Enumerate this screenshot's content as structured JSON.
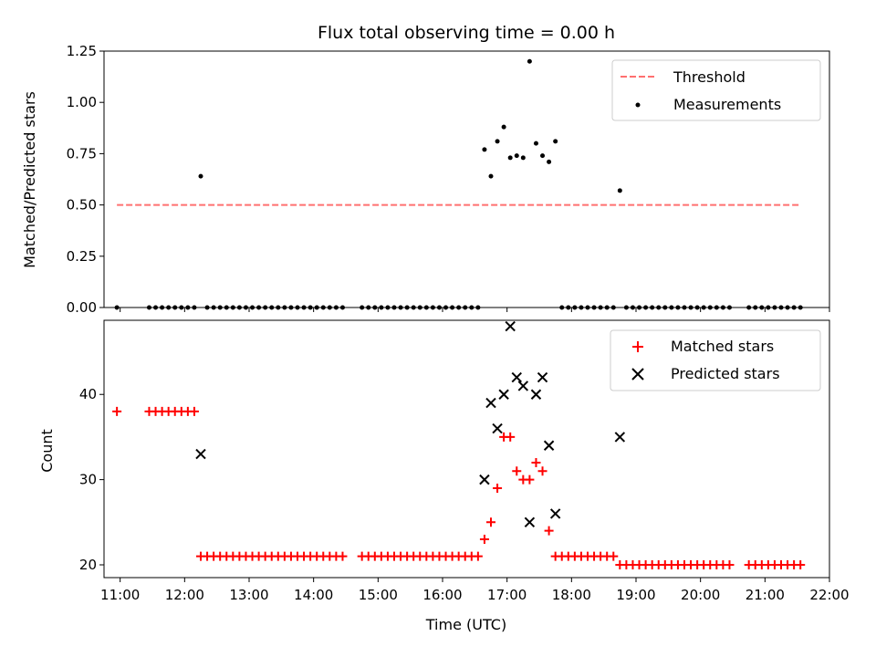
{
  "title": "Flux total observing time = 0.00 h",
  "chart_data": [
    {
      "type": "scatter",
      "ylabel": "Matched/Predicted stars",
      "ylim": [
        0,
        1.25
      ],
      "yticks": [
        0,
        0.25,
        0.5,
        0.75,
        1.0,
        1.25
      ],
      "ytick_labels": [
        "0.00",
        "0.25",
        "0.50",
        "0.75",
        "1.00",
        "1.25"
      ],
      "xlim": [
        "10:45",
        "22:00"
      ],
      "x_ticks_drawn": [
        "11:00",
        "12:00",
        "13:00",
        "14:00",
        "15:00",
        "16:00",
        "17:00",
        "18:00",
        "19:00",
        "20:00",
        "21:00",
        "22:00"
      ],
      "legend": {
        "placement": "top-right",
        "entries": [
          "Threshold",
          "Measurements"
        ]
      },
      "threshold": {
        "name": "Threshold",
        "y": 0.5,
        "x_range": [
          "10:57",
          "21:33"
        ],
        "color": "#ff7070",
        "style": "dashed"
      },
      "series": [
        {
          "name": "Measurements",
          "marker": "dot",
          "color": "#000000",
          "points": [
            [
              "10:57",
              0
            ],
            [
              "11:27",
              0
            ],
            [
              "11:33",
              0
            ],
            [
              "11:39",
              0
            ],
            [
              "11:45",
              0
            ],
            [
              "11:51",
              0
            ],
            [
              "11:57",
              0
            ],
            [
              "12:03",
              0
            ],
            [
              "12:09",
              0
            ],
            [
              "12:15",
              0.64
            ],
            [
              "12:21",
              0
            ],
            [
              "12:27",
              0
            ],
            [
              "12:33",
              0
            ],
            [
              "12:39",
              0
            ],
            [
              "12:45",
              0
            ],
            [
              "12:51",
              0
            ],
            [
              "12:57",
              0
            ],
            [
              "13:03",
              0
            ],
            [
              "13:09",
              0
            ],
            [
              "13:15",
              0
            ],
            [
              "13:21",
              0
            ],
            [
              "13:27",
              0
            ],
            [
              "13:33",
              0
            ],
            [
              "13:39",
              0
            ],
            [
              "13:45",
              0
            ],
            [
              "13:51",
              0
            ],
            [
              "13:57",
              0
            ],
            [
              "14:03",
              0
            ],
            [
              "14:09",
              0
            ],
            [
              "14:15",
              0
            ],
            [
              "14:21",
              0
            ],
            [
              "14:27",
              0
            ],
            [
              "14:45",
              0
            ],
            [
              "14:51",
              0
            ],
            [
              "14:57",
              0
            ],
            [
              "15:03",
              0
            ],
            [
              "15:09",
              0
            ],
            [
              "15:15",
              0
            ],
            [
              "15:21",
              0
            ],
            [
              "15:27",
              0
            ],
            [
              "15:33",
              0
            ],
            [
              "15:39",
              0
            ],
            [
              "15:45",
              0
            ],
            [
              "15:51",
              0
            ],
            [
              "15:57",
              0
            ],
            [
              "16:03",
              0
            ],
            [
              "16:09",
              0
            ],
            [
              "16:15",
              0
            ],
            [
              "16:21",
              0
            ],
            [
              "16:27",
              0
            ],
            [
              "16:33",
              0
            ],
            [
              "16:39",
              0.77
            ],
            [
              "16:45",
              0.64
            ],
            [
              "16:51",
              0.81
            ],
            [
              "16:57",
              0.88
            ],
            [
              "17:03",
              0.73
            ],
            [
              "17:09",
              0.74
            ],
            [
              "17:15",
              0.73
            ],
            [
              "17:21",
              1.2
            ],
            [
              "17:27",
              0.8
            ],
            [
              "17:33",
              0.74
            ],
            [
              "17:39",
              0.71
            ],
            [
              "17:45",
              0.81
            ],
            [
              "17:51",
              0
            ],
            [
              "17:57",
              0
            ],
            [
              "18:03",
              0
            ],
            [
              "18:09",
              0
            ],
            [
              "18:15",
              0
            ],
            [
              "18:21",
              0
            ],
            [
              "18:27",
              0
            ],
            [
              "18:33",
              0
            ],
            [
              "18:39",
              0
            ],
            [
              "18:45",
              0.57
            ],
            [
              "18:51",
              0
            ],
            [
              "18:57",
              0
            ],
            [
              "19:03",
              0
            ],
            [
              "19:09",
              0
            ],
            [
              "19:15",
              0
            ],
            [
              "19:21",
              0
            ],
            [
              "19:27",
              0
            ],
            [
              "19:33",
              0
            ],
            [
              "19:39",
              0
            ],
            [
              "19:45",
              0
            ],
            [
              "19:51",
              0
            ],
            [
              "19:57",
              0
            ],
            [
              "20:03",
              0
            ],
            [
              "20:09",
              0
            ],
            [
              "20:15",
              0
            ],
            [
              "20:21",
              0
            ],
            [
              "20:27",
              0
            ],
            [
              "20:45",
              0
            ],
            [
              "20:51",
              0
            ],
            [
              "20:57",
              0
            ],
            [
              "21:03",
              0
            ],
            [
              "21:09",
              0
            ],
            [
              "21:15",
              0
            ],
            [
              "21:21",
              0
            ],
            [
              "21:27",
              0
            ],
            [
              "21:33",
              0
            ]
          ]
        }
      ]
    },
    {
      "type": "scatter",
      "xlabel": "Time (UTC)",
      "ylabel": "Count",
      "ylim": [
        18.5,
        48.7
      ],
      "yticks": [
        20,
        30,
        40
      ],
      "ytick_labels": [
        "20",
        "30",
        "40"
      ],
      "xlim": [
        "10:45",
        "22:00"
      ],
      "xticks": [
        "11:00",
        "12:00",
        "13:00",
        "14:00",
        "15:00",
        "16:00",
        "17:00",
        "18:00",
        "19:00",
        "20:00",
        "21:00",
        "22:00"
      ],
      "legend": {
        "placement": "top-right",
        "entries": [
          "Matched stars",
          "Predicted stars"
        ]
      },
      "series": [
        {
          "name": "Matched stars",
          "marker": "plus",
          "color": "#ff0000",
          "points": [
            [
              "10:57",
              38
            ],
            [
              "11:27",
              38
            ],
            [
              "11:33",
              38
            ],
            [
              "11:39",
              38
            ],
            [
              "11:45",
              38
            ],
            [
              "11:51",
              38
            ],
            [
              "11:57",
              38
            ],
            [
              "12:03",
              38
            ],
            [
              "12:09",
              38
            ],
            [
              "12:15",
              21
            ],
            [
              "12:21",
              21
            ],
            [
              "12:27",
              21
            ],
            [
              "12:33",
              21
            ],
            [
              "12:39",
              21
            ],
            [
              "12:45",
              21
            ],
            [
              "12:51",
              21
            ],
            [
              "12:57",
              21
            ],
            [
              "13:03",
              21
            ],
            [
              "13:09",
              21
            ],
            [
              "13:15",
              21
            ],
            [
              "13:21",
              21
            ],
            [
              "13:27",
              21
            ],
            [
              "13:33",
              21
            ],
            [
              "13:39",
              21
            ],
            [
              "13:45",
              21
            ],
            [
              "13:51",
              21
            ],
            [
              "13:57",
              21
            ],
            [
              "14:03",
              21
            ],
            [
              "14:09",
              21
            ],
            [
              "14:15",
              21
            ],
            [
              "14:21",
              21
            ],
            [
              "14:27",
              21
            ],
            [
              "14:45",
              21
            ],
            [
              "14:51",
              21
            ],
            [
              "14:57",
              21
            ],
            [
              "15:03",
              21
            ],
            [
              "15:09",
              21
            ],
            [
              "15:15",
              21
            ],
            [
              "15:21",
              21
            ],
            [
              "15:27",
              21
            ],
            [
              "15:33",
              21
            ],
            [
              "15:39",
              21
            ],
            [
              "15:45",
              21
            ],
            [
              "15:51",
              21
            ],
            [
              "15:57",
              21
            ],
            [
              "16:03",
              21
            ],
            [
              "16:09",
              21
            ],
            [
              "16:15",
              21
            ],
            [
              "16:21",
              21
            ],
            [
              "16:27",
              21
            ],
            [
              "16:33",
              21
            ],
            [
              "16:39",
              23
            ],
            [
              "16:45",
              25
            ],
            [
              "16:51",
              29
            ],
            [
              "16:57",
              35
            ],
            [
              "17:03",
              35
            ],
            [
              "17:09",
              31
            ],
            [
              "17:15",
              30
            ],
            [
              "17:21",
              30
            ],
            [
              "17:27",
              32
            ],
            [
              "17:33",
              31
            ],
            [
              "17:39",
              24
            ],
            [
              "17:45",
              21
            ],
            [
              "17:51",
              21
            ],
            [
              "17:57",
              21
            ],
            [
              "18:03",
              21
            ],
            [
              "18:09",
              21
            ],
            [
              "18:15",
              21
            ],
            [
              "18:21",
              21
            ],
            [
              "18:27",
              21
            ],
            [
              "18:33",
              21
            ],
            [
              "18:39",
              21
            ],
            [
              "18:45",
              20
            ],
            [
              "18:51",
              20
            ],
            [
              "18:57",
              20
            ],
            [
              "19:03",
              20
            ],
            [
              "19:09",
              20
            ],
            [
              "19:15",
              20
            ],
            [
              "19:21",
              20
            ],
            [
              "19:27",
              20
            ],
            [
              "19:33",
              20
            ],
            [
              "19:39",
              20
            ],
            [
              "19:45",
              20
            ],
            [
              "19:51",
              20
            ],
            [
              "19:57",
              20
            ],
            [
              "20:03",
              20
            ],
            [
              "20:09",
              20
            ],
            [
              "20:15",
              20
            ],
            [
              "20:21",
              20
            ],
            [
              "20:27",
              20
            ],
            [
              "20:45",
              20
            ],
            [
              "20:51",
              20
            ],
            [
              "20:57",
              20
            ],
            [
              "21:03",
              20
            ],
            [
              "21:09",
              20
            ],
            [
              "21:15",
              20
            ],
            [
              "21:21",
              20
            ],
            [
              "21:27",
              20
            ],
            [
              "21:33",
              20
            ]
          ]
        },
        {
          "name": "Predicted stars",
          "marker": "x",
          "color": "#000000",
          "points": [
            [
              "12:15",
              33
            ],
            [
              "16:39",
              30
            ],
            [
              "16:45",
              39
            ],
            [
              "16:51",
              36
            ],
            [
              "16:57",
              40
            ],
            [
              "17:03",
              48
            ],
            [
              "17:09",
              42
            ],
            [
              "17:15",
              41
            ],
            [
              "17:21",
              25
            ],
            [
              "17:27",
              40
            ],
            [
              "17:33",
              42
            ],
            [
              "17:39",
              34
            ],
            [
              "17:45",
              26
            ],
            [
              "18:45",
              35
            ]
          ]
        }
      ]
    }
  ]
}
